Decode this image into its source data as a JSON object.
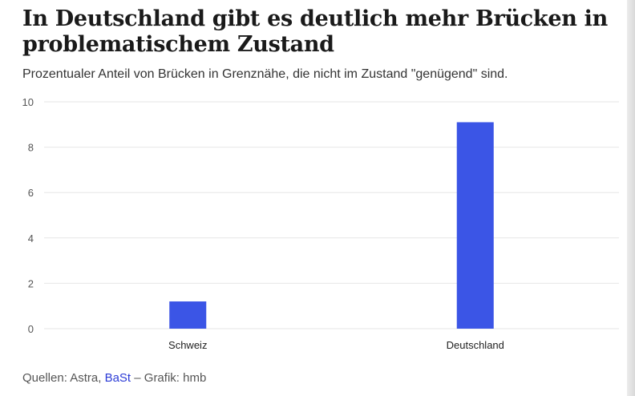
{
  "header": {
    "title": "In Deutschland gibt es deutlich mehr Brücken in problematischem Zustand",
    "subtitle": "Prozentualer Anteil von Brücken in Grenznähe, die nicht im Zustand \"genügend\" sind."
  },
  "footer": {
    "prefix": "Quellen: Astra, ",
    "link": "BaSt",
    "suffix": " – Grafik: hmb"
  },
  "colors": {
    "bar": "#3b55e6",
    "grid": "#e6e6e6",
    "link": "#2b3bd6"
  },
  "chart_data": {
    "type": "bar",
    "categories": [
      "Schweiz",
      "Deutschland"
    ],
    "values": [
      1.2,
      9.1
    ],
    "ylim": [
      0,
      10
    ],
    "yticks": [
      0,
      2,
      4,
      6,
      8,
      10
    ],
    "grid": true
  }
}
